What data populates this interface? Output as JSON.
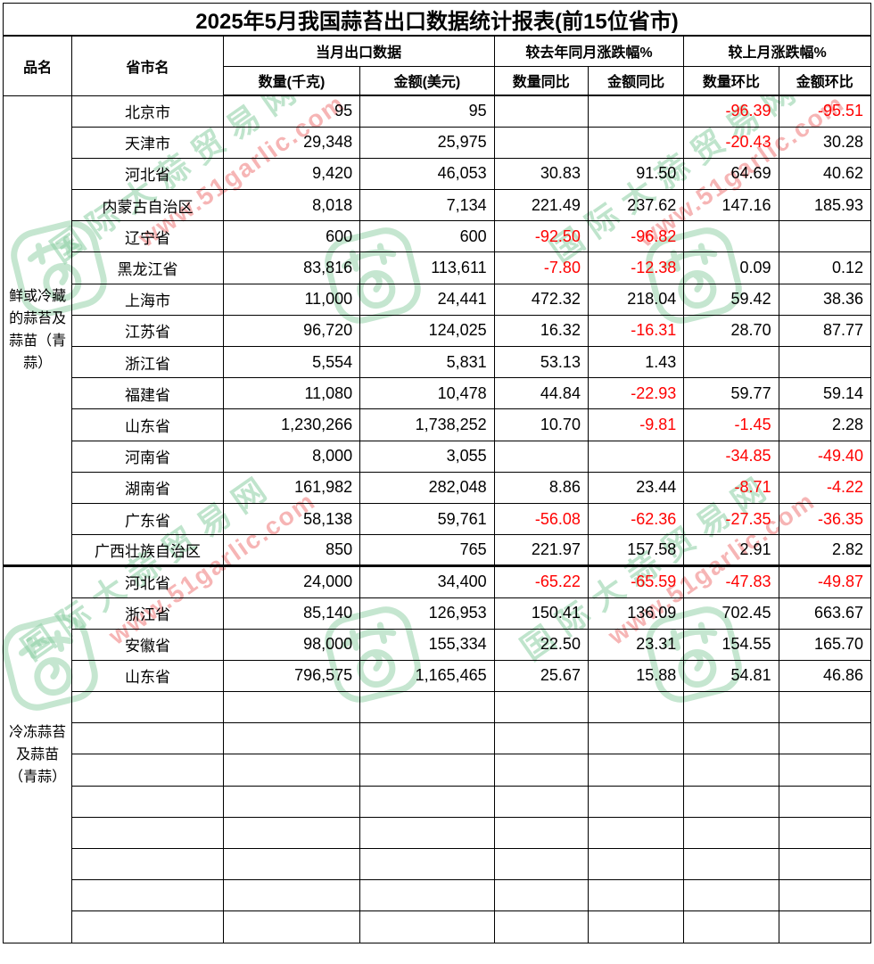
{
  "title": "2025年5月我国蒜苔出口数据统计报表(前15位省市)",
  "header": {
    "product": "品名",
    "province": "省市名",
    "group_current": "当月出口数据",
    "group_yoy": "较去年同月涨跌幅%",
    "group_mom": "较上月涨跌幅%",
    "qty_kg": "数量(千克)",
    "amount_usd": "金额(美元)",
    "qty_yoy": "数量同比",
    "amount_yoy": "金额同比",
    "qty_mom": "数量环比",
    "amount_mom": "金额环比"
  },
  "colors": {
    "negative_value": "#ff0000",
    "text": "#000000",
    "border": "#000000",
    "watermark_green": "#8ccfa3",
    "watermark_red": "#f07979"
  },
  "watermark": {
    "site_name": "国际大蒜贸易网",
    "site_url": "www.51garlic.com"
  },
  "groups": [
    {
      "product": "鲜或冷藏的蒜苔及蒜苗（青蒜）",
      "rows": [
        {
          "province": "北京市",
          "qty": "95",
          "amount": "95",
          "qty_yoy": "",
          "amount_yoy": "",
          "qty_mom": "-96.39",
          "amount_mom": "-95.51"
        },
        {
          "province": "天津市",
          "qty": "29,348",
          "amount": "25,975",
          "qty_yoy": "",
          "amount_yoy": "",
          "qty_mom": "-20.43",
          "amount_mom": "30.28"
        },
        {
          "province": "河北省",
          "qty": "9,420",
          "amount": "46,053",
          "qty_yoy": "30.83",
          "amount_yoy": "91.50",
          "qty_mom": "64.69",
          "amount_mom": "40.62"
        },
        {
          "province": "内蒙古自治区",
          "qty": "8,018",
          "amount": "7,134",
          "qty_yoy": "221.49",
          "amount_yoy": "237.62",
          "qty_mom": "147.16",
          "amount_mom": "185.93"
        },
        {
          "province": "辽宁省",
          "qty": "600",
          "amount": "600",
          "qty_yoy": "-92.50",
          "amount_yoy": "-96.82",
          "qty_mom": "",
          "amount_mom": ""
        },
        {
          "province": "黑龙江省",
          "qty": "83,816",
          "amount": "113,611",
          "qty_yoy": "-7.80",
          "amount_yoy": "-12.38",
          "qty_mom": "0.09",
          "amount_mom": "0.12"
        },
        {
          "province": "上海市",
          "qty": "11,000",
          "amount": "24,441",
          "qty_yoy": "472.32",
          "amount_yoy": "218.04",
          "qty_mom": "59.42",
          "amount_mom": "38.36"
        },
        {
          "province": "江苏省",
          "qty": "96,720",
          "amount": "124,025",
          "qty_yoy": "16.32",
          "amount_yoy": "-16.31",
          "qty_mom": "28.70",
          "amount_mom": "87.77"
        },
        {
          "province": "浙江省",
          "qty": "5,554",
          "amount": "5,831",
          "qty_yoy": "53.13",
          "amount_yoy": "1.43",
          "qty_mom": "",
          "amount_mom": ""
        },
        {
          "province": "福建省",
          "qty": "11,080",
          "amount": "10,478",
          "qty_yoy": "44.84",
          "amount_yoy": "-22.93",
          "qty_mom": "59.77",
          "amount_mom": "59.14"
        },
        {
          "province": "山东省",
          "qty": "1,230,266",
          "amount": "1,738,252",
          "qty_yoy": "10.70",
          "amount_yoy": "-9.81",
          "qty_mom": "-1.45",
          "amount_mom": "2.28"
        },
        {
          "province": "河南省",
          "qty": "8,000",
          "amount": "3,055",
          "qty_yoy": "",
          "amount_yoy": "",
          "qty_mom": "-34.85",
          "amount_mom": "-49.40"
        },
        {
          "province": "湖南省",
          "qty": "161,982",
          "amount": "282,048",
          "qty_yoy": "8.86",
          "amount_yoy": "23.44",
          "qty_mom": "-8.71",
          "amount_mom": "-4.22"
        },
        {
          "province": "广东省",
          "qty": "58,138",
          "amount": "59,761",
          "qty_yoy": "-56.08",
          "amount_yoy": "-62.36",
          "qty_mom": "-27.35",
          "amount_mom": "-36.35"
        },
        {
          "province": "广西壮族自治区",
          "qty": "850",
          "amount": "765",
          "qty_yoy": "221.97",
          "amount_yoy": "157.58",
          "qty_mom": "2.91",
          "amount_mom": "2.82"
        }
      ]
    },
    {
      "product": "冷冻蒜苔及蒜苗（青蒜）",
      "rows": [
        {
          "province": "河北省",
          "qty": "24,000",
          "amount": "34,400",
          "qty_yoy": "-65.22",
          "amount_yoy": "-65.59",
          "qty_mom": "-47.83",
          "amount_mom": "-49.87"
        },
        {
          "province": "浙江省",
          "qty": "85,140",
          "amount": "126,953",
          "qty_yoy": "150.41",
          "amount_yoy": "136.09",
          "qty_mom": "702.45",
          "amount_mom": "663.67"
        },
        {
          "province": "安徽省",
          "qty": "98,000",
          "amount": "155,334",
          "qty_yoy": "22.50",
          "amount_yoy": "23.31",
          "qty_mom": "154.55",
          "amount_mom": "165.70"
        },
        {
          "province": "山东省",
          "qty": "796,575",
          "amount": "1,165,465",
          "qty_yoy": "25.67",
          "amount_yoy": "15.88",
          "qty_mom": "54.81",
          "amount_mom": "46.86"
        },
        {
          "province": "",
          "qty": "",
          "amount": "",
          "qty_yoy": "",
          "amount_yoy": "",
          "qty_mom": "",
          "amount_mom": ""
        },
        {
          "province": "",
          "qty": "",
          "amount": "",
          "qty_yoy": "",
          "amount_yoy": "",
          "qty_mom": "",
          "amount_mom": ""
        },
        {
          "province": "",
          "qty": "",
          "amount": "",
          "qty_yoy": "",
          "amount_yoy": "",
          "qty_mom": "",
          "amount_mom": ""
        },
        {
          "province": "",
          "qty": "",
          "amount": "",
          "qty_yoy": "",
          "amount_yoy": "",
          "qty_mom": "",
          "amount_mom": ""
        },
        {
          "province": "",
          "qty": "",
          "amount": "",
          "qty_yoy": "",
          "amount_yoy": "",
          "qty_mom": "",
          "amount_mom": ""
        },
        {
          "province": "",
          "qty": "",
          "amount": "",
          "qty_yoy": "",
          "amount_yoy": "",
          "qty_mom": "",
          "amount_mom": ""
        },
        {
          "province": "",
          "qty": "",
          "amount": "",
          "qty_yoy": "",
          "amount_yoy": "",
          "qty_mom": "",
          "amount_mom": ""
        },
        {
          "province": "",
          "qty": "",
          "amount": "",
          "qty_yoy": "",
          "amount_yoy": "",
          "qty_mom": "",
          "amount_mom": ""
        }
      ]
    }
  ]
}
